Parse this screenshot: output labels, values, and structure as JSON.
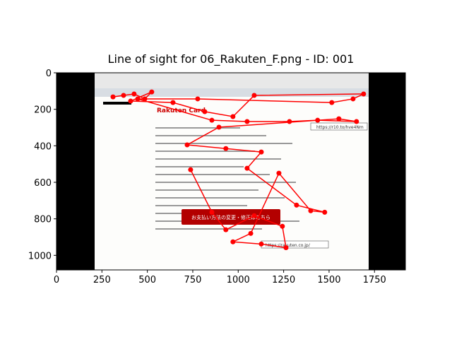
{
  "chart_data": {
    "type": "line",
    "title": "Line of sight for 06_Rakuten_F.png - ID: 001",
    "image_texts": [
      "Rakuten Card",
      "お支払い方法の変更・修正はこちら",
      "https://r10.to/hve4Nm",
      "https://rakuten.co.jp/"
    ],
    "x": [
      311,
      369,
      427,
      486,
      524,
      408,
      641,
      816,
      971,
      1088,
      1690,
      1632,
      1515,
      777,
      447,
      855,
      1049,
      1282,
      1437,
      1651,
      1554,
      894,
      719,
      932,
      1127,
      1049,
      1321,
      1476,
      1399,
      1224,
      1069,
      971,
      1127,
      1263,
      1243,
      1088,
      932,
      855,
      738
    ],
    "values": [
      132,
      124,
      116,
      143,
      105,
      155,
      163,
      213,
      240,
      124,
      116,
      143,
      163,
      143,
      143,
      260,
      267,
      267,
      260,
      267,
      252,
      298,
      395,
      415,
      434,
      523,
      725,
      764,
      756,
      550,
      880,
      926,
      938,
      958,
      841,
      783,
      860,
      764,
      531
    ],
    "color": "#ff0000",
    "xlim": [
      0,
      1920
    ],
    "ylim": [
      1080,
      0
    ],
    "xticks": [
      0,
      250,
      500,
      750,
      1000,
      1250,
      1500,
      1750
    ],
    "yticks": [
      0,
      200,
      400,
      600,
      800,
      1000
    ]
  }
}
